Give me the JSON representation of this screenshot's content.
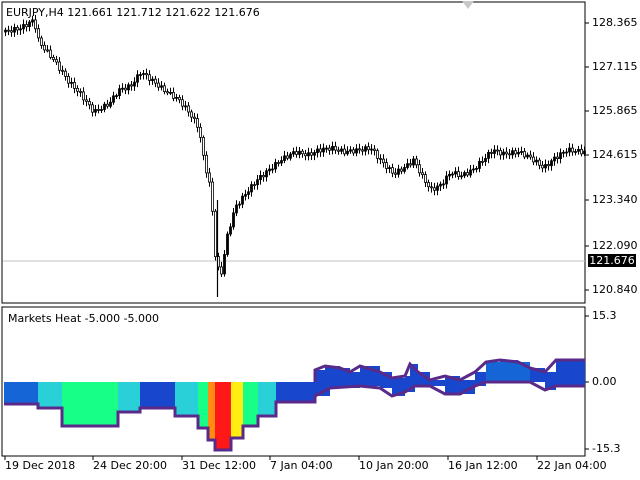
{
  "price_panel": {
    "header": "EURJPY,H4  121.661 121.712 121.622 121.676",
    "current_price": "121.676",
    "price_labels": [
      "128.365",
      "127.115",
      "125.865",
      "124.615",
      "123.340",
      "122.090",
      "120.840"
    ]
  },
  "indicator_panel": {
    "header": "Markets Heat -5.000 -5.000",
    "scale_labels": [
      "15.3",
      "0.00",
      "-15.3"
    ]
  },
  "time_axis": {
    "labels": [
      "19 Dec 2018",
      "24 Dec 20:00",
      "31 Dec 12:00",
      "7 Jan 04:00",
      "10 Jan 20:00",
      "16 Jan 12:00",
      "22 Jan 04:00"
    ]
  },
  "colors": {
    "candle": "#000000",
    "background": "#ffffff",
    "grid_line": "#c0c0c0",
    "heat_dark_blue": "#1846cc",
    "heat_blue": "#1665d6",
    "heat_cyan": "#2ad0d8",
    "heat_green": "#18ff88",
    "heat_yellow": "#ffee10",
    "heat_red": "#ff1818",
    "heat_orange": "#ff8c10",
    "heat_outline": "#5a2a8a"
  },
  "chart_data": [
    {
      "type": "candlestick",
      "title": "EURJPY,H4",
      "ohlc_last": {
        "open": 121.661,
        "high": 121.712,
        "low": 121.622,
        "close": 121.676
      },
      "ylim": [
        120.6,
        128.7
      ],
      "close_path": [
        {
          "x": "19 Dec 2018",
          "y": 128.2
        },
        {
          "x": "21 Dec",
          "y": 127.0
        },
        {
          "x": "24 Dec 20:00",
          "y": 125.9
        },
        {
          "x": "26 Dec",
          "y": 126.9
        },
        {
          "x": "28 Dec",
          "y": 126.2
        },
        {
          "x": "31 Dec 12:00",
          "y": 124.2
        },
        {
          "x": "2 Jan",
          "y": 121.0
        },
        {
          "x": "4 Jan",
          "y": 123.4
        },
        {
          "x": "7 Jan 04:00",
          "y": 124.6
        },
        {
          "x": "10 Jan 20:00",
          "y": 124.3
        },
        {
          "x": "14 Jan",
          "y": 123.8
        },
        {
          "x": "16 Jan 12:00",
          "y": 124.6
        },
        {
          "x": "22 Jan 04:00",
          "y": 124.6
        }
      ]
    },
    {
      "type": "area",
      "title": "Markets Heat",
      "values": [
        -5.0,
        -5.0
      ],
      "ylim": [
        -15.3,
        15.3
      ]
    }
  ]
}
